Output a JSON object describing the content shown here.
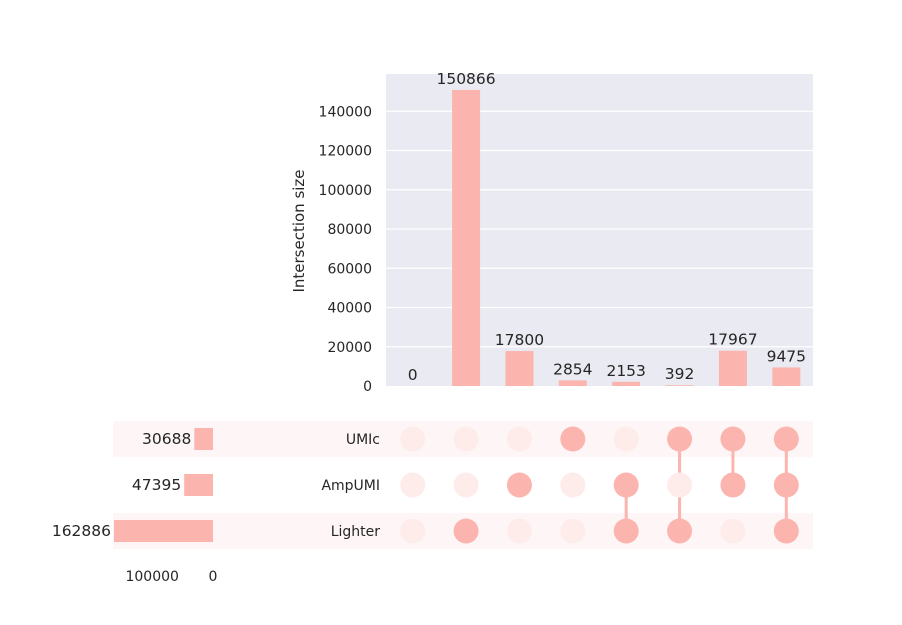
{
  "chart_data": {
    "type": "bar",
    "subtype": "upset",
    "ylabel": "Intersection size",
    "ylim": [
      0,
      160000
    ],
    "yticks": [
      0,
      20000,
      40000,
      60000,
      80000,
      100000,
      120000,
      140000
    ],
    "sets": [
      {
        "name": "UMIc",
        "size": 30688
      },
      {
        "name": "AmpUMI",
        "size": 47395
      },
      {
        "name": "Lighter",
        "size": 162886
      }
    ],
    "set_size_ticks": [
      100000,
      0
    ],
    "intersections": [
      {
        "members": [],
        "value": 0
      },
      {
        "members": [
          "Lighter"
        ],
        "value": 150866
      },
      {
        "members": [
          "AmpUMI"
        ],
        "value": 17800
      },
      {
        "members": [
          "UMIc"
        ],
        "value": 2854
      },
      {
        "members": [
          "AmpUMI",
          "Lighter"
        ],
        "value": 2153
      },
      {
        "members": [
          "UMIc",
          "Lighter"
        ],
        "value": 392
      },
      {
        "members": [
          "UMIc",
          "AmpUMI"
        ],
        "value": 17967
      },
      {
        "members": [
          "UMIc",
          "AmpUMI",
          "Lighter"
        ],
        "value": 9475
      }
    ],
    "grid": true,
    "colors": {
      "bar": "#fbb4ae",
      "dot_active": "#fbb4ae",
      "dot_inactive": "#fdecea",
      "plot_bg": "#eaeaf2",
      "band": "#fef6f6",
      "text": "#262626"
    }
  }
}
